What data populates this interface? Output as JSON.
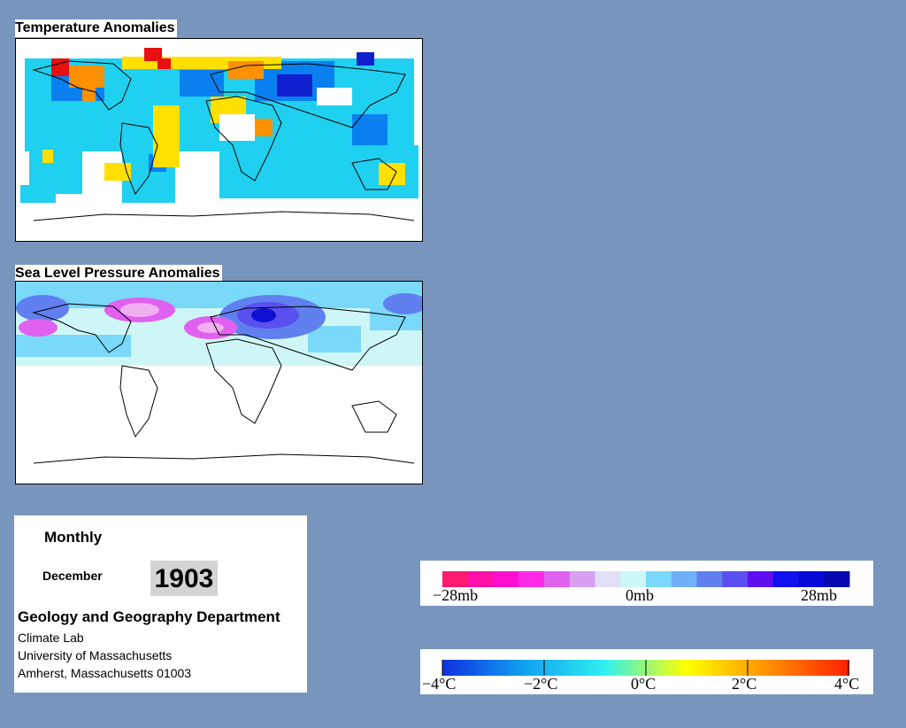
{
  "temperature_map": {
    "title": "Temperature Anomalies"
  },
  "pressure_map": {
    "title": "Sea Level Pressure Anomalies"
  },
  "info": {
    "frequency": "Monthly",
    "month": "December",
    "year": "1903",
    "department": "Geology and Geography Department",
    "lines": [
      "Climate Lab",
      "University of Massachusetts",
      "Amherst, Massachusetts 01003"
    ]
  },
  "pressure_legend": {
    "labels": [
      "−28mb",
      "0mb",
      "28mb"
    ],
    "colors": [
      "#ff1a6e",
      "#ff10a8",
      "#ff10d0",
      "#ff2ae8",
      "#e060f0",
      "#d8a0f0",
      "#e0e0f8",
      "#ccf8f8",
      "#7ad8f8",
      "#70b0f8",
      "#6080f0",
      "#5a50f0",
      "#6010f0",
      "#1010f0",
      "#0808d8",
      "#0808b0"
    ]
  },
  "temperature_legend": {
    "labels": [
      "−4°C",
      "−2°C",
      "0°C",
      "2°C",
      "4°C"
    ],
    "gradient": [
      "#1030e0",
      "#10a0f0",
      "#30f0f0",
      "#ffff00",
      "#ff9000",
      "#ff2000"
    ]
  }
}
